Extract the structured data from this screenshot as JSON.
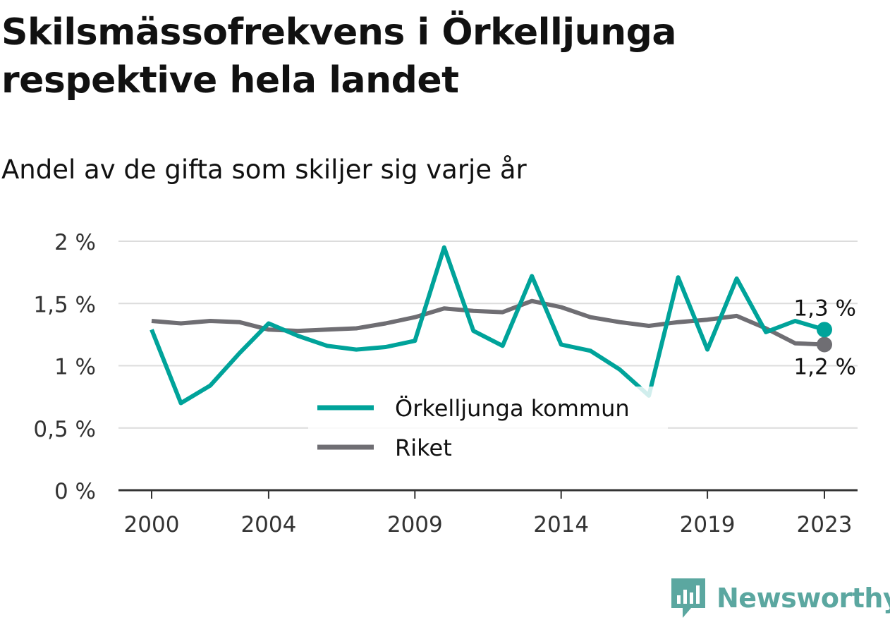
{
  "header": {
    "title": "Skilsmässofrekvens i Örkelljunga respektive hela landet",
    "subtitle": "Andel av de gifta som skiljer sig varje år"
  },
  "brand": {
    "name": "Newsworthy",
    "icon": "newsworthy-logo-icon"
  },
  "colors": {
    "kommun": "#00a39a",
    "riket": "#6f6e73",
    "grid": "#dcdcdc",
    "axis": "#333333",
    "brand": "#5ba7a0"
  },
  "chart_data": {
    "type": "line",
    "x": [
      2000,
      2001,
      2002,
      2003,
      2004,
      2005,
      2006,
      2007,
      2008,
      2009,
      2010,
      2011,
      2012,
      2013,
      2014,
      2015,
      2016,
      2017,
      2018,
      2019,
      2020,
      2021,
      2022,
      2023
    ],
    "xticks": [
      2000,
      2004,
      2009,
      2014,
      2019,
      2023
    ],
    "xtick_labels": [
      "2000",
      "2004",
      "2009",
      "2014",
      "2019",
      "2023"
    ],
    "ylim": [
      0,
      2
    ],
    "yticks": [
      0,
      0.5,
      1,
      1.5,
      2
    ],
    "ytick_labels": [
      "0 %",
      "0,5 %",
      "1 %",
      "1,5 %",
      "2 %"
    ],
    "grid": true,
    "legend": "center",
    "series": [
      {
        "name": "Örkelljunga kommun",
        "color": "#00a39a",
        "values": [
          1.29,
          0.7,
          0.84,
          1.1,
          1.34,
          1.24,
          1.16,
          1.13,
          1.15,
          1.2,
          1.95,
          1.28,
          1.16,
          1.72,
          1.17,
          1.12,
          0.97,
          0.76,
          1.71,
          1.13,
          1.7,
          1.27,
          1.36,
          1.29
        ],
        "end_label": "1,3 %"
      },
      {
        "name": "Riket",
        "color": "#6f6e73",
        "values": [
          1.36,
          1.34,
          1.36,
          1.35,
          1.29,
          1.28,
          1.29,
          1.3,
          1.34,
          1.39,
          1.46,
          1.44,
          1.43,
          1.52,
          1.47,
          1.39,
          1.35,
          1.32,
          1.35,
          1.37,
          1.4,
          1.3,
          1.18,
          1.17
        ],
        "end_label": "1,2 %"
      }
    ]
  }
}
